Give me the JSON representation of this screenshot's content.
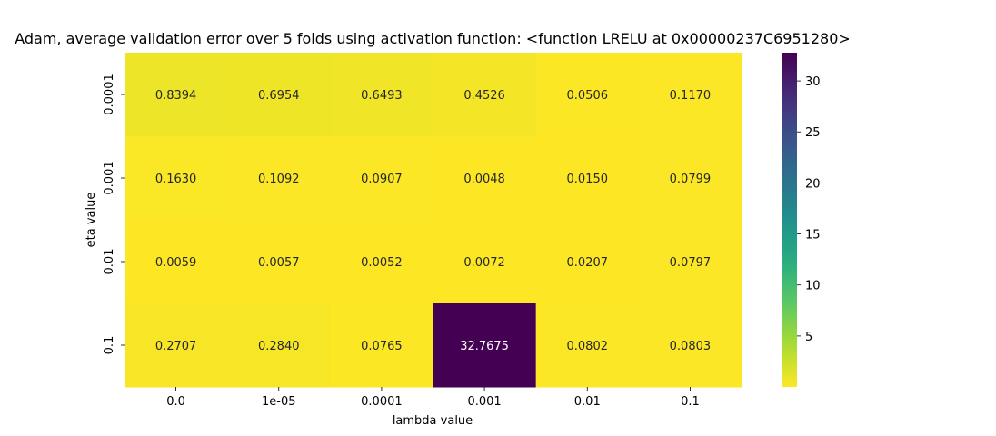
{
  "chart_data": {
    "type": "heatmap",
    "title": "Adam, average validation error over 5 folds using activation function: <function LRELU at 0x00000237C6951280>",
    "xlabel": "lambda value",
    "ylabel": "eta value",
    "x_categories": [
      "0.0",
      "1e-05",
      "0.0001",
      "0.001",
      "0.01",
      "0.1"
    ],
    "y_categories": [
      "0.0001",
      "0.001",
      "0.01",
      "0.1"
    ],
    "values": [
      [
        0.8394,
        0.6954,
        0.6493,
        0.4526,
        0.0506,
        0.117
      ],
      [
        0.163,
        0.1092,
        0.0907,
        0.0048,
        0.015,
        0.0799
      ],
      [
        0.0059,
        0.0057,
        0.0052,
        0.0072,
        0.0207,
        0.0797
      ],
      [
        0.2707,
        0.284,
        0.0765,
        32.7675,
        0.0802,
        0.0803
      ]
    ],
    "cell_labels": [
      [
        "0.8394",
        "0.6954",
        "0.6493",
        "0.4526",
        "0.0506",
        "0.1170"
      ],
      [
        "0.1630",
        "0.1092",
        "0.0907",
        "0.0048",
        "0.0150",
        "0.0799"
      ],
      [
        "0.0059",
        "0.0057",
        "0.0052",
        "0.0072",
        "0.0207",
        "0.0797"
      ],
      [
        "0.2707",
        "0.2840",
        "0.0765",
        "32.7675",
        "0.0802",
        "0.0803"
      ]
    ],
    "colormap": "viridis_r",
    "vmin": 0.0048,
    "vmax": 32.7675,
    "colorbar_ticks": [
      5,
      10,
      15,
      20,
      25,
      30
    ],
    "colorbar_tick_labels": [
      "5",
      "10",
      "15",
      "20",
      "25",
      "30"
    ]
  }
}
